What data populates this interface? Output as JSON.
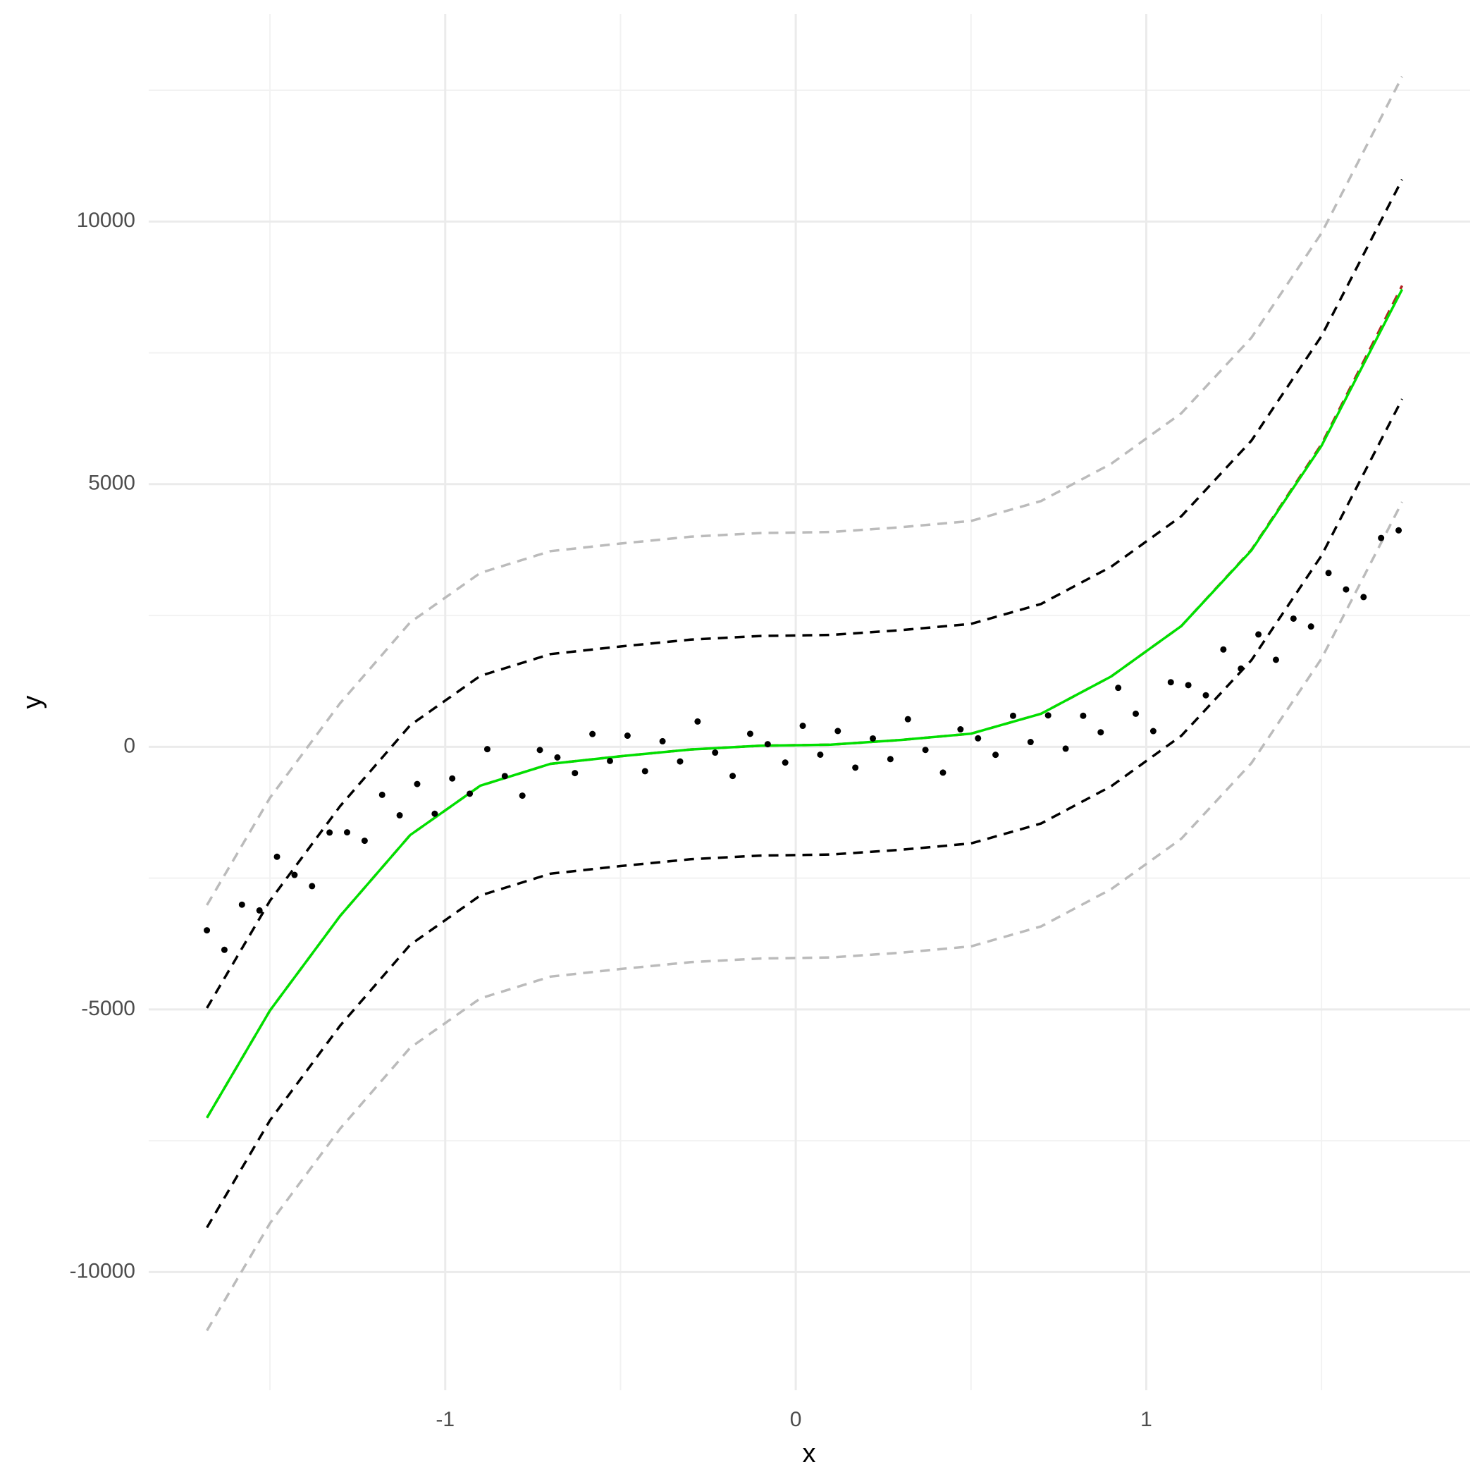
{
  "chart_data": {
    "type": "scatter",
    "x_label": "x",
    "y_label": "y",
    "xlim": [
      -1.846,
      1.924
    ],
    "ylim": [
      -12250,
      13950
    ],
    "xticks": [
      -1,
      0,
      1
    ],
    "yticks": [
      -10000,
      -5000,
      0,
      5000,
      10000
    ],
    "minor_xticks": [
      -1.5,
      -0.5,
      0.5,
      1.5
    ],
    "minor_yticks": [
      -7500,
      -2500,
      2500,
      7500,
      12500
    ],
    "grid": true,
    "points": {
      "color": "#000000",
      "x": [
        -1.68,
        -1.63,
        -1.58,
        -1.53,
        -1.48,
        -1.43,
        -1.38,
        -1.33,
        -1.28,
        -1.23,
        -1.18,
        -1.13,
        -1.08,
        -1.03,
        -0.98,
        -0.93,
        -0.88,
        -0.83,
        -0.78,
        -0.73,
        -0.68,
        -0.63,
        -0.58,
        -0.53,
        -0.48,
        -0.43,
        -0.38,
        -0.33,
        -0.28,
        -0.23,
        -0.18,
        -0.13,
        -0.08,
        -0.03,
        0.02,
        0.07,
        0.12,
        0.17,
        0.22,
        0.27,
        0.32,
        0.37,
        0.42,
        0.47,
        0.52,
        0.57,
        0.62,
        0.67,
        0.72,
        0.77,
        0.82,
        0.87,
        0.92,
        0.97,
        1.02,
        1.07,
        1.12,
        1.17,
        1.22,
        1.27,
        1.32,
        1.37,
        1.42,
        1.47,
        1.52,
        1.57,
        1.62,
        1.67,
        1.72
      ],
      "values": [
        -3493,
        -3865,
        -3005,
        -3115,
        -2093,
        -2439,
        -2652,
        -1632,
        -1628,
        -1789,
        -914,
        -1304,
        -708,
        -1274,
        -603,
        -893,
        -45,
        -557,
        -930,
        -61,
        -202,
        -500,
        244,
        -269,
        212,
        -464,
        106,
        -279,
        482,
        -110,
        -555,
        248,
        50,
        -300,
        400,
        -150,
        301,
        -396,
        159,
        -234,
        526,
        -59,
        -491,
        333,
        162,
        -152,
        591,
        91,
        599,
        -35,
        591,
        277,
        1123,
        630,
        299,
        1230,
        1174,
        981,
        1853,
        1489,
        2140,
        1657,
        2441,
        2291,
        3309,
        2996,
        2851,
        3976,
        4121
      ]
    },
    "x": [
      -1.68,
      -1.5,
      -1.3,
      -1.1,
      -0.9,
      -0.7,
      -0.5,
      -0.3,
      -0.1,
      0.1,
      0.3,
      0.5,
      0.7,
      0.9,
      1.1,
      1.3,
      1.5,
      1.73
    ],
    "series": [
      {
        "color": "#bbbbbb",
        "dash": true,
        "values": [
          -3014,
          -970,
          830,
          2370,
          3310,
          3725,
          3870,
          4000,
          4070,
          4090,
          4180,
          4300,
          4680,
          5390,
          6350,
          7790,
          9780,
          12760
        ]
      },
      {
        "color": "#bbbbbb",
        "dash": true,
        "values": [
          -11114,
          -9070,
          -7270,
          -5730,
          -4790,
          -4375,
          -4230,
          -4100,
          -4030,
          -4010,
          -3920,
          -3800,
          -3420,
          -2710,
          -1750,
          -310,
          1680,
          4660
        ]
      },
      {
        "color": "#000000",
        "dash": true,
        "values": [
          -4974,
          -2930,
          -1130,
          410,
          1350,
          1765,
          1910,
          2040,
          2110,
          2130,
          2220,
          2340,
          2720,
          3430,
          4390,
          5830,
          7820,
          10800
        ]
      },
      {
        "color": "#000000",
        "dash": true,
        "values": [
          -9154,
          -7110,
          -5310,
          -3770,
          -2830,
          -2415,
          -2270,
          -2140,
          -2070,
          -2050,
          -1960,
          -1840,
          -1460,
          -750,
          210,
          1650,
          3640,
          6620
        ]
      },
      {
        "color": "#b22222",
        "dash": true,
        "values": [
          -7064,
          -5020,
          -3220,
          -1680,
          -740,
          -325,
          -180,
          -50,
          20,
          40,
          130,
          250,
          630,
          1340,
          2300,
          3750,
          5760,
          8780
        ]
      },
      {
        "color": "#00e000",
        "dash": false,
        "values": [
          -7064,
          -5020,
          -3220,
          -1680,
          -740,
          -325,
          -180,
          -50,
          20,
          40,
          130,
          250,
          630,
          1340,
          2300,
          3740,
          5730,
          8710
        ]
      }
    ]
  }
}
